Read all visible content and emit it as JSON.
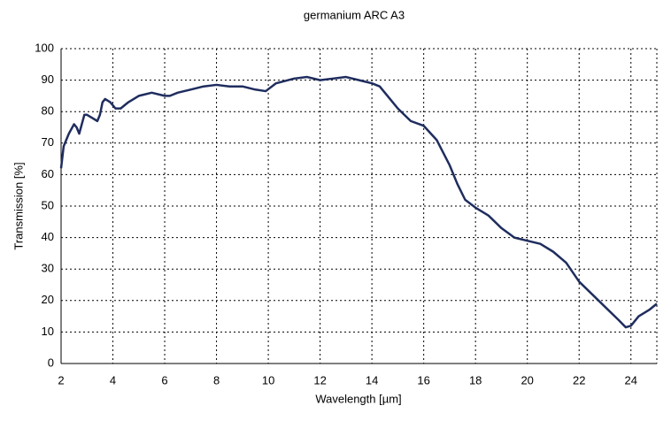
{
  "chart_data": {
    "type": "line",
    "title": "germanium ARC A3",
    "x_label": "Wavelength [µm]",
    "y_label": "Transmission [%]",
    "series": [
      {
        "name": "Transmission",
        "color": "#1f2d5e",
        "x": [
          2.0,
          2.1,
          2.3,
          2.5,
          2.6,
          2.7,
          2.8,
          2.9,
          3.0,
          3.2,
          3.4,
          3.5,
          3.6,
          3.7,
          3.9,
          4.1,
          4.3,
          4.6,
          5.0,
          5.5,
          6.0,
          6.2,
          6.5,
          7.0,
          7.5,
          8.0,
          8.5,
          9.0,
          9.5,
          9.9,
          10.3,
          11.0,
          11.5,
          12.0,
          12.5,
          13.0,
          13.5,
          14.0,
          14.3,
          14.7,
          15.0,
          15.5,
          16.0,
          16.5,
          17.0,
          17.3,
          17.6,
          18.0,
          18.5,
          19.0,
          19.5,
          20.0,
          20.5,
          21.0,
          21.5,
          22.0,
          22.5,
          23.0,
          23.5,
          23.8,
          24.0,
          24.3,
          24.7,
          25.0
        ],
        "values": [
          62,
          69,
          73,
          76,
          75,
          73,
          76,
          79,
          79,
          78,
          77,
          79,
          83,
          84,
          83,
          81,
          81,
          83,
          85,
          86,
          85,
          85,
          86,
          87,
          88,
          88.5,
          88,
          88,
          87,
          86.5,
          89,
          90.5,
          91,
          90,
          90.5,
          91,
          90,
          89,
          88,
          84,
          81,
          77,
          75.5,
          71,
          63,
          57,
          52,
          49.5,
          47,
          43,
          40,
          39,
          38,
          35.5,
          32,
          26,
          22,
          18,
          14,
          11.5,
          12,
          15,
          17,
          19
        ]
      }
    ],
    "xlim": [
      2,
      25
    ],
    "xticks": [
      2,
      4,
      6,
      8,
      10,
      12,
      14,
      16,
      18,
      20,
      22,
      24
    ],
    "ylim": [
      0,
      100
    ],
    "yticks": [
      0,
      10,
      20,
      30,
      40,
      50,
      60,
      70,
      80,
      90,
      100
    ],
    "grid": true
  }
}
